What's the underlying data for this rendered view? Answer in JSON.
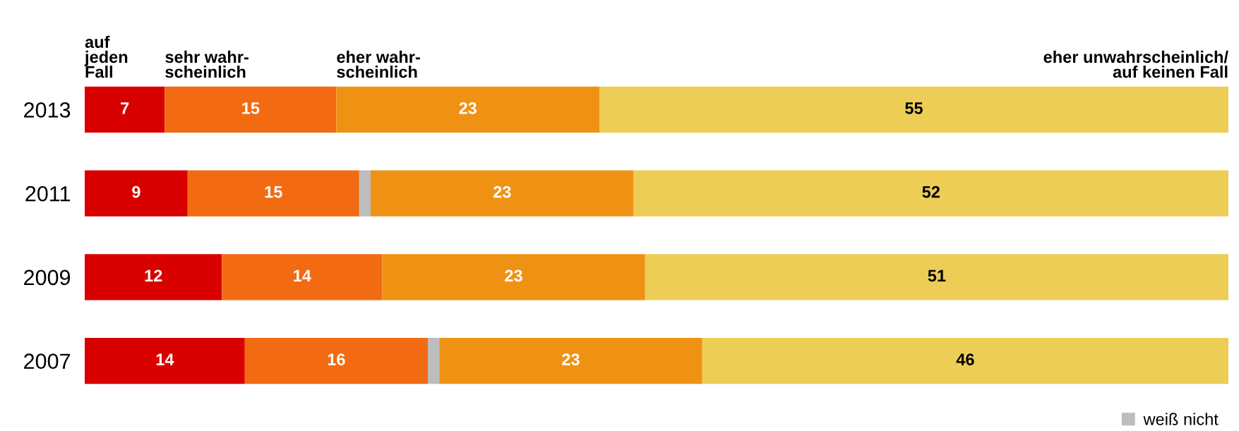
{
  "chart_data": {
    "type": "bar",
    "orientation": "horizontal",
    "stacked": true,
    "categories": [
      "2013",
      "2011",
      "2009",
      "2007"
    ],
    "series": [
      {
        "name": "auf\njeden\nFall",
        "color": "#d90000",
        "values": [
          7,
          9,
          12,
          14
        ],
        "value_labels": [
          "7",
          "9",
          "12",
          "14"
        ]
      },
      {
        "name": "sehr wahr-\nscheinlich",
        "color": "#f26b12",
        "values": [
          15,
          15,
          14,
          16
        ],
        "value_labels": [
          "15",
          "15",
          "14",
          "16"
        ]
      },
      {
        "name": "weiß nicht",
        "color": "#bdbdbd",
        "values": [
          0,
          1,
          0,
          1
        ],
        "value_labels": [
          null,
          null,
          null,
          null
        ]
      },
      {
        "name": "eher wahr-\nscheinlich",
        "color": "#ef9214",
        "values": [
          23,
          23,
          23,
          23
        ],
        "value_labels": [
          "23",
          "23",
          "23",
          "23"
        ]
      },
      {
        "name": "eher unwahrscheinlich/\nauf keinen Fall",
        "color": "#edcd55",
        "values": [
          55,
          52,
          51,
          46
        ],
        "value_labels": [
          "55",
          "52",
          "51",
          "46"
        ]
      }
    ],
    "legend": "bottom right",
    "grid": false
  }
}
